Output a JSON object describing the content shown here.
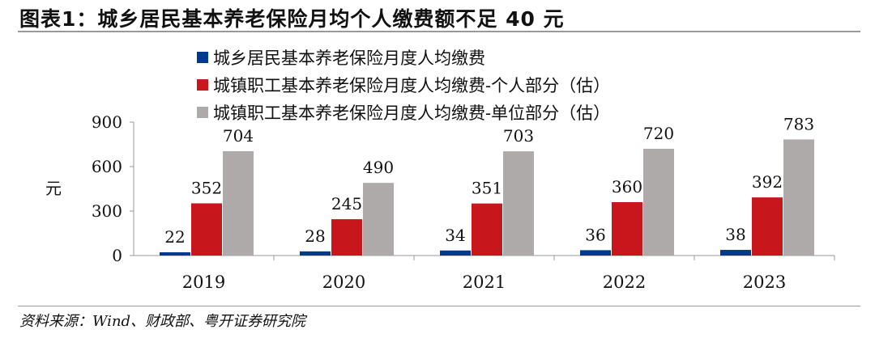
{
  "title": "图表1：城乡居民基本养老保险月均个人缴费额不足 40 元",
  "source": "资料来源：Wind、财政部、粤开证券研究院",
  "chart_data": {
    "type": "bar",
    "title": "图表1：城乡居民基本养老保险月均个人缴费额不足 40 元",
    "ylabel": "元",
    "xlabel": "",
    "ylim": [
      0,
      900
    ],
    "yticks": [
      0,
      300,
      600,
      900
    ],
    "categories": [
      "2019",
      "2020",
      "2021",
      "2022",
      "2023"
    ],
    "legend_position": "top",
    "series": [
      {
        "name": "城乡居民基本养老保险月度人均缴费",
        "color": "#003a8c",
        "values": [
          22,
          28,
          34,
          36,
          38
        ]
      },
      {
        "name": "城镇职工基本养老保险月度人均缴费-个人部分（估）",
        "color": "#c8161d",
        "values": [
          352,
          245,
          351,
          360,
          392
        ]
      },
      {
        "name": "城镇职工基本养老保险月度人均缴费-单位部分（估）",
        "color": "#aeaaaa",
        "values": [
          704,
          490,
          703,
          720,
          783
        ]
      }
    ]
  }
}
